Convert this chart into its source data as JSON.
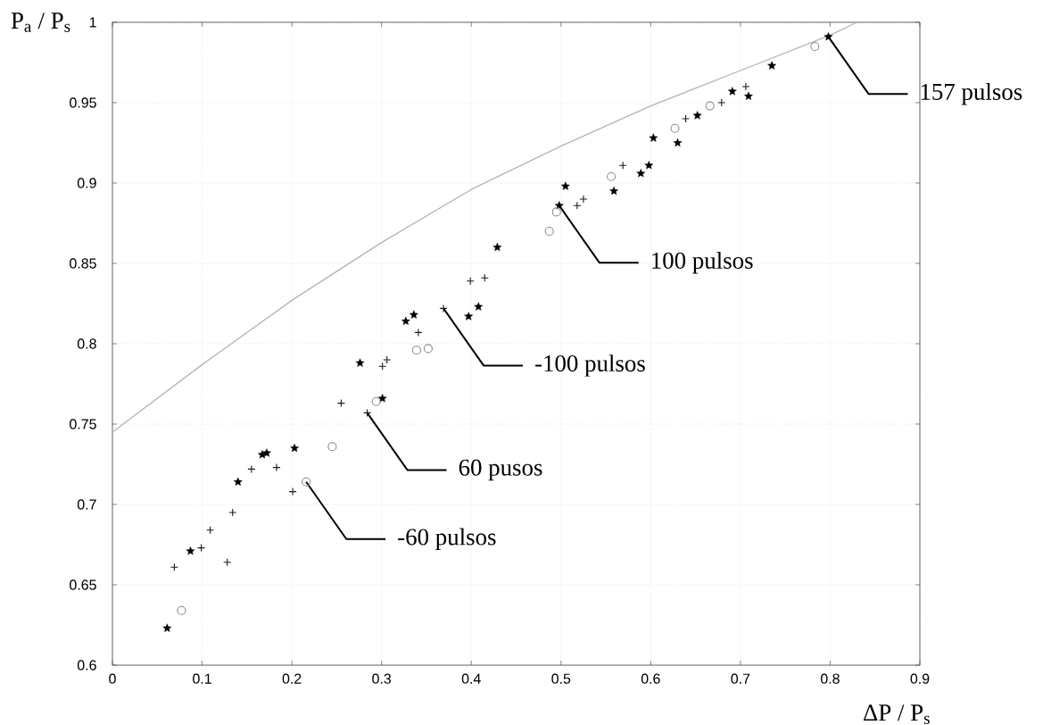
{
  "chart_data": {
    "type": "scatter",
    "xlabel": "ΔP / P$_{s}$",
    "ylabel": "P$_{a}$ / P$_{s}$",
    "xlim": [
      0,
      0.9
    ],
    "ylim": [
      0.6,
      1
    ],
    "xticks": [
      0,
      0.1,
      0.2,
      0.3,
      0.4,
      0.5,
      0.6,
      0.7,
      0.8,
      0.9
    ],
    "yticks": [
      0.6,
      0.65,
      0.7,
      0.75,
      0.8,
      0.85,
      0.9,
      0.95,
      1
    ],
    "grid": true,
    "series": [
      {
        "type": "line",
        "color": "#b4b4b4",
        "marker": "none",
        "line_style": "solid",
        "x": [
          0,
          0.1,
          0.2,
          0.3,
          0.4,
          0.5,
          0.6,
          0.7,
          0.8,
          0.83
        ],
        "values": [
          0.745,
          0.787,
          0.827,
          0.863,
          0.896,
          0.923,
          0.948,
          0.97,
          0.992,
          1
        ]
      },
      {
        "color": "#000000",
        "marker": "star",
        "x": [
          0.061,
          0.087,
          0.14,
          0.167,
          0.172,
          0.203,
          0.276,
          0.301,
          0.327,
          0.336,
          0.397,
          0.408,
          0.429,
          0.498,
          0.505,
          0.559,
          0.589,
          0.598,
          0.603,
          0.63,
          0.652,
          0.691,
          0.709,
          0.735,
          0.798
        ],
        "values": [
          0.623,
          0.671,
          0.714,
          0.731,
          0.732,
          0.735,
          0.788,
          0.766,
          0.814,
          0.818,
          0.817,
          0.823,
          0.86,
          0.886,
          0.898,
          0.895,
          0.906,
          0.911,
          0.928,
          0.925,
          0.942,
          0.957,
          0.954,
          0.973,
          0.991
        ]
      },
      {
        "color": "#1a1a1a",
        "marker": "cross",
        "x": [
          0.069,
          0.099,
          0.109,
          0.128,
          0.134,
          0.155,
          0.183,
          0.201,
          0.255,
          0.284,
          0.301,
          0.306,
          0.341,
          0.369,
          0.399,
          0.415,
          0.518,
          0.525,
          0.569,
          0.639,
          0.679,
          0.706
        ],
        "values": [
          0.661,
          0.673,
          0.684,
          0.664,
          0.695,
          0.722,
          0.723,
          0.708,
          0.763,
          0.757,
          0.786,
          0.79,
          0.807,
          0.822,
          0.839,
          0.841,
          0.886,
          0.89,
          0.911,
          0.94,
          0.95,
          0.96
        ]
      },
      {
        "color": "#8c8c8c",
        "marker": "circle",
        "x": [
          0.077,
          0.216,
          0.245,
          0.294,
          0.339,
          0.352,
          0.487,
          0.495,
          0.556,
          0.627,
          0.666,
          0.783
        ],
        "values": [
          0.634,
          0.714,
          0.736,
          0.764,
          0.796,
          0.797,
          0.87,
          0.882,
          0.904,
          0.934,
          0.948,
          0.985
        ]
      }
    ],
    "annotations": [
      {
        "text": "157 pulsos",
        "x": 0.798,
        "y": 0.991
      },
      {
        "text": "100 pulsos",
        "x": 0.498,
        "y": 0.886
      },
      {
        "text": "-100 pulsos",
        "x": 0.369,
        "y": 0.822
      },
      {
        "text": "60 pusos",
        "x": 0.284,
        "y": 0.757
      },
      {
        "text": "-60 pulsos",
        "x": 0.216,
        "y": 0.714
      }
    ]
  }
}
